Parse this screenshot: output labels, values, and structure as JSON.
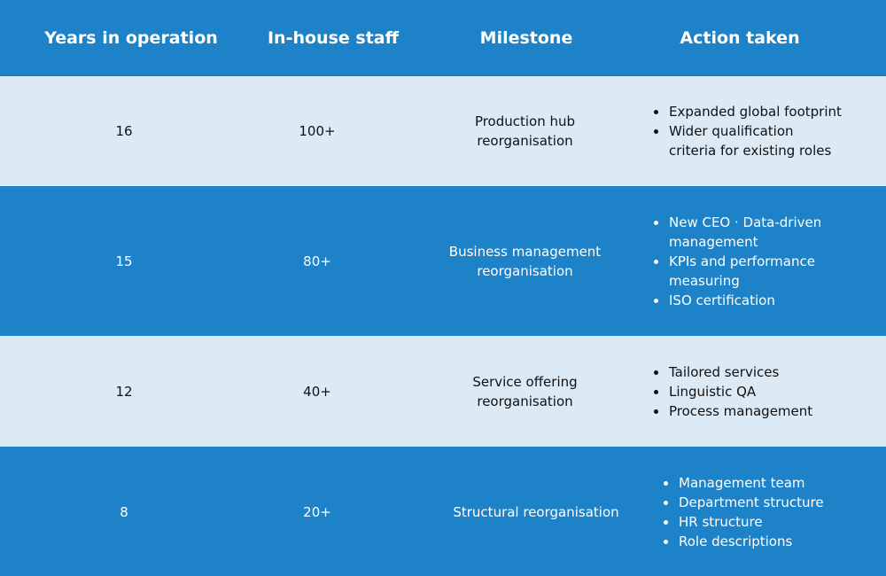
{
  "headers": {
    "years": "Years in operation",
    "staff": "In-house staff",
    "milestone": "Milestone",
    "action": "Action taken"
  },
  "rows": [
    {
      "years": "16",
      "staff": "100+",
      "milestone": "Production hub reorganisation",
      "actions": [
        "Expanded global footprint",
        "Wider qualification criteria for existing roles"
      ]
    },
    {
      "years": "15",
      "staff": "80+",
      "milestone": "Business management reorganisation",
      "actions": [
        "New CEO · Data-driven management",
        "KPIs and performance measuring",
        "ISO certification"
      ]
    },
    {
      "years": "12",
      "staff": "40+",
      "milestone": "Service offering reorganisation",
      "actions": [
        "Tailored services",
        "Linguistic QA",
        "Process management"
      ]
    },
    {
      "years": "8",
      "staff": "20+",
      "milestone": "Structural reorganisation",
      "actions": [
        "Management team",
        "Department structure",
        "HR structure",
        "Role descriptions"
      ]
    }
  ],
  "colors": {
    "dark_row": "#1e82c8",
    "light_row": "#dceaf5",
    "dark_text": "#111111",
    "light_text": "#ffffff"
  }
}
